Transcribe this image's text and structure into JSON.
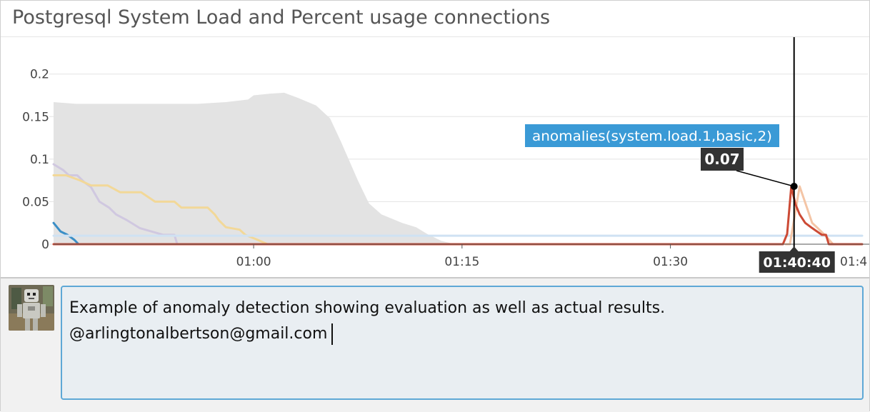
{
  "widget": {
    "title": "Postgresql System Load and Percent usage connections"
  },
  "chart_data": {
    "type": "line",
    "title": "Postgresql System Load and Percent usage connections",
    "xlabel": "",
    "ylabel": "",
    "x_tick_labels": [
      "01:00",
      "01:15",
      "01:30",
      "01:4"
    ],
    "y_ticks": [
      0,
      0.05,
      0.1,
      0.15,
      0.2
    ],
    "y_tick_labels": [
      "0",
      "0.05",
      "0.1",
      "0.15",
      "0.2"
    ],
    "x_range_minutes": [
      45.6,
      103.8
    ],
    "ylim": [
      0,
      0.235
    ],
    "grid": true,
    "band": {
      "name": "anomaly bounds",
      "color": "#e3e3e3",
      "points": [
        [
          45.6,
          0.167
        ],
        [
          47.2,
          0.165
        ],
        [
          51,
          0.165
        ],
        [
          56,
          0.165
        ],
        [
          58,
          0.167
        ],
        [
          59.6,
          0.17
        ],
        [
          60,
          0.175
        ],
        [
          61.2,
          0.177
        ],
        [
          62.2,
          0.178
        ],
        [
          63.2,
          0.172
        ],
        [
          64.5,
          0.163
        ],
        [
          65.5,
          0.148
        ],
        [
          66.3,
          0.12
        ],
        [
          67.5,
          0.075
        ],
        [
          68.3,
          0.048
        ],
        [
          69.2,
          0.035
        ],
        [
          70.7,
          0.025
        ],
        [
          71.7,
          0.02
        ],
        [
          72.5,
          0.012
        ],
        [
          73.5,
          0.004
        ],
        [
          74.5,
          0.0
        ]
      ]
    },
    "series": [
      {
        "color": "#d0c8e0",
        "points": [
          [
            45.6,
            0.094
          ],
          [
            46.3,
            0.087
          ],
          [
            46.7,
            0.081
          ],
          [
            47.3,
            0.081
          ],
          [
            47.8,
            0.073
          ],
          [
            48.3,
            0.067
          ],
          [
            48.9,
            0.05
          ],
          [
            49.6,
            0.043
          ],
          [
            50.1,
            0.035
          ],
          [
            50.9,
            0.028
          ],
          [
            51.8,
            0.019
          ],
          [
            53.5,
            0.011
          ],
          [
            54.3,
            0.011
          ],
          [
            54.5,
            0.0
          ]
        ]
      },
      {
        "color": "#f2d898",
        "points": [
          [
            45.6,
            0.081
          ],
          [
            46.5,
            0.081
          ],
          [
            47.5,
            0.075
          ],
          [
            48.3,
            0.069
          ],
          [
            49.5,
            0.069
          ],
          [
            50.4,
            0.061
          ],
          [
            51.9,
            0.061
          ],
          [
            52.9,
            0.05
          ],
          [
            54.3,
            0.05
          ],
          [
            54.8,
            0.043
          ],
          [
            56.7,
            0.043
          ],
          [
            57.2,
            0.035
          ],
          [
            57.5,
            0.028
          ],
          [
            58,
            0.02
          ],
          [
            59,
            0.017
          ],
          [
            59.4,
            0.011
          ],
          [
            60.3,
            0.005
          ],
          [
            61,
            0.0
          ]
        ]
      },
      {
        "color": "#3b8fc7",
        "points": [
          [
            45.6,
            0.025
          ],
          [
            46.1,
            0.015
          ],
          [
            46.6,
            0.011
          ],
          [
            47.1,
            0.005
          ],
          [
            47.4,
            0.0
          ],
          [
            59.8,
            0.0
          ]
        ]
      },
      {
        "color": "#cfe2f3",
        "points": [
          [
            45.6,
            0.01
          ],
          [
            103.8,
            0.01
          ]
        ]
      },
      {
        "name": "anomalies(system.load.1,basic,2)",
        "color": "#f4c5a6",
        "points": [
          [
            98.3,
            0.0
          ],
          [
            98.6,
            0.0
          ],
          [
            99.3,
            0.068
          ],
          [
            100.2,
            0.025
          ],
          [
            100.6,
            0.019
          ],
          [
            101.1,
            0.011
          ],
          [
            101.7,
            0.0
          ]
        ]
      },
      {
        "name": "anomalies(system.load.1,basic,2)",
        "color": "#cc4a35",
        "points": [
          [
            45.6,
            0.0
          ],
          [
            98.1,
            0.0
          ],
          [
            98.4,
            0.012
          ],
          [
            98.7,
            0.068
          ],
          [
            99.0,
            0.047
          ],
          [
            99.3,
            0.035
          ],
          [
            99.7,
            0.025
          ],
          [
            100.2,
            0.019
          ],
          [
            100.9,
            0.011
          ],
          [
            101.2,
            0.011
          ],
          [
            101.4,
            0.0
          ],
          [
            103.8,
            0.0
          ]
        ]
      }
    ],
    "tooltip": {
      "series_label": "anomalies(system.load.1,basic,2)",
      "value": "0.07",
      "time_label": "01:40:40",
      "x_minutes": 98.9,
      "y": 0.068,
      "label_bg": "#3a9ad6"
    }
  },
  "comment": {
    "line1": "Example of anomaly detection showing evaluation as well as actual results.",
    "line2": "@arlingtonalbertson@gmail.com"
  }
}
